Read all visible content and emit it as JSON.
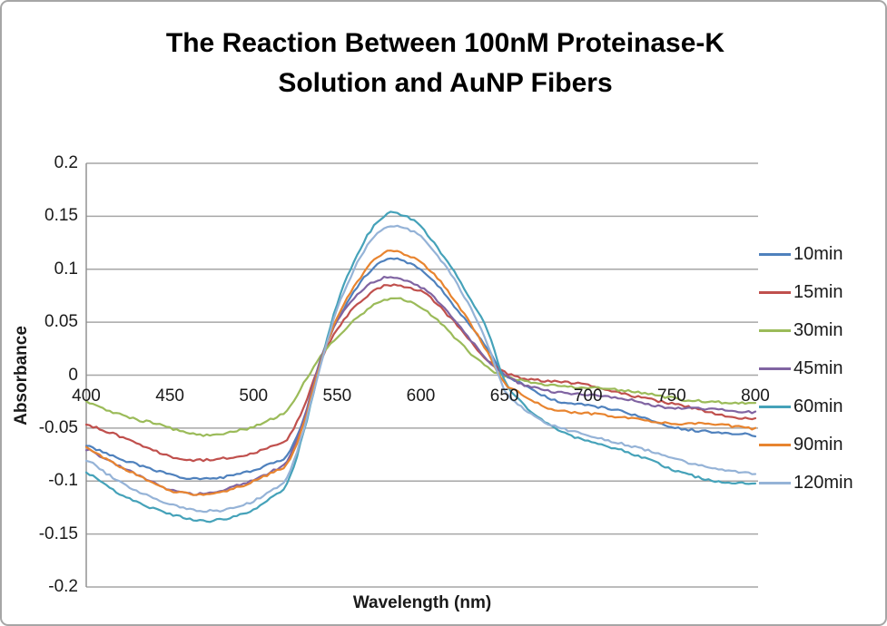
{
  "window": {
    "background": "#FFFFFF",
    "border_color": "#A6A6A6"
  },
  "chart_data": {
    "type": "line",
    "title": "The Reaction Between 100nM Proteinase-K Solution and AuNP Fibers",
    "title_lines": [
      "The Reaction Between 100nM Proteinase-K",
      "Solution and AuNP Fibers"
    ],
    "xlabel": "Wavelength (nm)",
    "ylabel": "Absorbance",
    "x_range": [
      400,
      800
    ],
    "y_range": [
      -0.2,
      0.2
    ],
    "x_ticks": [
      "400",
      "450",
      "500",
      "550",
      "600",
      "650",
      "700",
      "750",
      "800"
    ],
    "y_ticks": [
      "0.2",
      "0.15",
      "0.1",
      "0.05",
      "0",
      "-0.05",
      "-0.1",
      "-0.15",
      "-0.2"
    ],
    "grid": true,
    "legend_position": "right",
    "colors": {
      "gridline": "#A6A6A6",
      "axis_line": "#8C8C8C",
      "text": "#1A1A1A"
    },
    "x_step": 10,
    "x_start": 400,
    "series": [
      {
        "name": "10min",
        "color": "#4F81BD",
        "values": [
          -0.065,
          -0.072,
          -0.079,
          -0.085,
          -0.09,
          -0.094,
          -0.097,
          -0.097,
          -0.096,
          -0.094,
          -0.091,
          -0.085,
          -0.076,
          -0.04,
          0.015,
          0.052,
          0.078,
          0.098,
          0.109,
          0.107,
          0.1,
          0.086,
          0.066,
          0.045,
          0.024,
          -0.001,
          -0.008,
          -0.016,
          -0.023,
          -0.026,
          -0.029,
          -0.032,
          -0.035,
          -0.039,
          -0.044,
          -0.048,
          -0.051,
          -0.053,
          -0.055,
          -0.056,
          -0.057
        ]
      },
      {
        "name": "15min",
        "color": "#C0504D",
        "values": [
          -0.048,
          -0.053,
          -0.058,
          -0.064,
          -0.07,
          -0.076,
          -0.08,
          -0.081,
          -0.08,
          -0.077,
          -0.073,
          -0.067,
          -0.06,
          -0.03,
          0.012,
          0.042,
          0.063,
          0.078,
          0.086,
          0.084,
          0.079,
          0.066,
          0.049,
          0.031,
          0.015,
          0.004,
          -0.002,
          -0.005,
          -0.007,
          -0.008,
          -0.01,
          -0.013,
          -0.016,
          -0.02,
          -0.024,
          -0.028,
          -0.031,
          -0.034,
          -0.037,
          -0.039,
          -0.041
        ]
      },
      {
        "name": "30min",
        "color": "#9BBB59",
        "values": [
          -0.025,
          -0.031,
          -0.036,
          -0.042,
          -0.046,
          -0.051,
          -0.054,
          -0.056,
          -0.055,
          -0.052,
          -0.049,
          -0.043,
          -0.034,
          -0.008,
          0.018,
          0.037,
          0.052,
          0.064,
          0.071,
          0.07,
          0.064,
          0.052,
          0.037,
          0.021,
          0.007,
          -0.002,
          -0.006,
          -0.008,
          -0.009,
          -0.01,
          -0.011,
          -0.013,
          -0.015,
          -0.017,
          -0.019,
          -0.021,
          -0.023,
          -0.024,
          -0.026,
          -0.027,
          -0.028
        ]
      },
      {
        "name": "45min",
        "color": "#8064A2",
        "values": [
          -0.07,
          -0.079,
          -0.087,
          -0.094,
          -0.101,
          -0.107,
          -0.111,
          -0.112,
          -0.11,
          -0.105,
          -0.099,
          -0.091,
          -0.08,
          -0.042,
          0.014,
          0.05,
          0.072,
          0.086,
          0.093,
          0.091,
          0.084,
          0.07,
          0.052,
          0.032,
          0.014,
          0.001,
          -0.007,
          -0.012,
          -0.016,
          -0.018,
          -0.019,
          -0.02,
          -0.021,
          -0.024,
          -0.028,
          -0.031,
          -0.032,
          -0.033,
          -0.033,
          -0.034,
          -0.034
        ]
      },
      {
        "name": "60min",
        "color": "#45A2B9",
        "values": [
          -0.092,
          -0.102,
          -0.111,
          -0.119,
          -0.126,
          -0.132,
          -0.136,
          -0.138,
          -0.136,
          -0.132,
          -0.126,
          -0.116,
          -0.103,
          -0.055,
          0.01,
          0.068,
          0.108,
          0.137,
          0.152,
          0.15,
          0.139,
          0.12,
          0.098,
          0.072,
          0.042,
          -0.005,
          -0.026,
          -0.04,
          -0.05,
          -0.057,
          -0.061,
          -0.066,
          -0.071,
          -0.077,
          -0.083,
          -0.089,
          -0.093,
          -0.097,
          -0.1,
          -0.102,
          -0.103
        ]
      },
      {
        "name": "90min",
        "color": "#E8842F",
        "values": [
          -0.068,
          -0.078,
          -0.087,
          -0.095,
          -0.102,
          -0.108,
          -0.111,
          -0.112,
          -0.111,
          -0.107,
          -0.101,
          -0.093,
          -0.083,
          -0.045,
          0.012,
          0.054,
          0.082,
          0.104,
          0.117,
          0.115,
          0.107,
          0.092,
          0.071,
          0.047,
          0.02,
          -0.008,
          -0.017,
          -0.026,
          -0.032,
          -0.035,
          -0.037,
          -0.039,
          -0.04,
          -0.041,
          -0.043,
          -0.045,
          -0.046,
          -0.047,
          -0.048,
          -0.049,
          -0.05
        ]
      },
      {
        "name": "120min",
        "color": "#95B3D7",
        "values": [
          -0.081,
          -0.091,
          -0.1,
          -0.108,
          -0.115,
          -0.122,
          -0.127,
          -0.129,
          -0.128,
          -0.124,
          -0.118,
          -0.109,
          -0.097,
          -0.052,
          0.008,
          0.062,
          0.1,
          0.128,
          0.141,
          0.139,
          0.13,
          0.112,
          0.09,
          0.063,
          0.03,
          -0.013,
          -0.03,
          -0.042,
          -0.049,
          -0.053,
          -0.056,
          -0.06,
          -0.064,
          -0.069,
          -0.074,
          -0.079,
          -0.083,
          -0.086,
          -0.089,
          -0.091,
          -0.093
        ]
      }
    ]
  }
}
